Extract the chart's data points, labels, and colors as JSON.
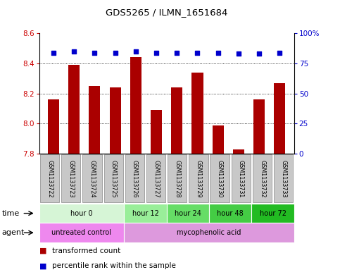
{
  "title": "GDS5265 / ILMN_1651684",
  "samples": [
    "GSM1133722",
    "GSM1133723",
    "GSM1133724",
    "GSM1133725",
    "GSM1133726",
    "GSM1133727",
    "GSM1133728",
    "GSM1133729",
    "GSM1133730",
    "GSM1133731",
    "GSM1133732",
    "GSM1133733"
  ],
  "bar_values": [
    8.16,
    8.39,
    8.25,
    8.24,
    8.44,
    8.09,
    8.24,
    8.34,
    7.99,
    7.83,
    8.16,
    8.27
  ],
  "percentile_values": [
    84,
    85,
    84,
    84,
    85,
    84,
    84,
    84,
    84,
    83,
    83,
    84
  ],
  "bar_bottom": 7.8,
  "ylim_left": [
    7.8,
    8.6
  ],
  "ylim_right": [
    0,
    100
  ],
  "yticks_left": [
    7.8,
    8.0,
    8.2,
    8.4,
    8.6
  ],
  "yticks_right": [
    0,
    25,
    50,
    75,
    100
  ],
  "ytick_labels_right": [
    "0",
    "25",
    "50",
    "75",
    "100%"
  ],
  "bar_color": "#aa0000",
  "dot_color": "#0000cc",
  "time_groups": [
    {
      "label": "hour 0",
      "start": 0,
      "end": 4,
      "color": "#d6f5d6"
    },
    {
      "label": "hour 12",
      "start": 4,
      "end": 6,
      "color": "#99ee99"
    },
    {
      "label": "hour 24",
      "start": 6,
      "end": 8,
      "color": "#66dd66"
    },
    {
      "label": "hour 48",
      "start": 8,
      "end": 10,
      "color": "#44cc44"
    },
    {
      "label": "hour 72",
      "start": 10,
      "end": 12,
      "color": "#22bb22"
    }
  ],
  "agent_groups": [
    {
      "label": "untreated control",
      "start": 0,
      "end": 4,
      "color": "#ee88ee"
    },
    {
      "label": "mycophenolic acid",
      "start": 4,
      "end": 12,
      "color": "#dd99dd"
    }
  ],
  "legend_items": [
    {
      "label": "transformed count",
      "color": "#aa0000"
    },
    {
      "label": "percentile rank within the sample",
      "color": "#0000cc"
    }
  ],
  "sample_box_color": "#c8c8c8",
  "sample_box_edge": "#888888"
}
